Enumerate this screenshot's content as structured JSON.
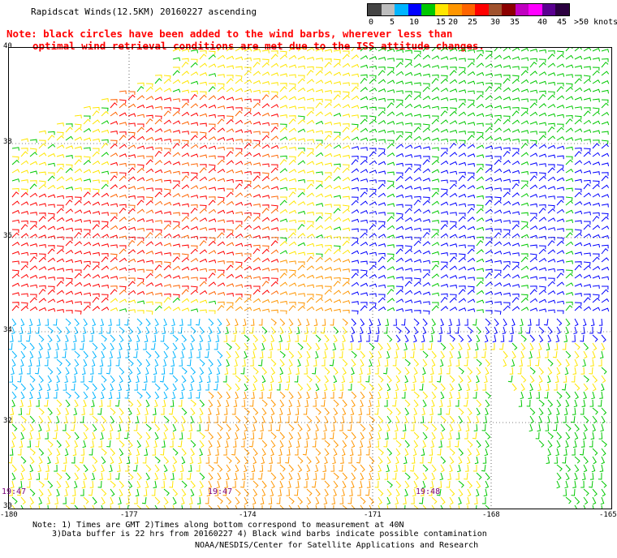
{
  "header": {
    "title": "Rapidscat Winds(12.5KM) 20160227 ascending",
    "note_line1": "Note: black circles have been added to the wind barbs, wherever less than",
    "note_line2": "optimal wind retrieval conditions are met due to the ISS attitude changes."
  },
  "legend": {
    "labels": [
      "0",
      "5",
      "10",
      "15",
      "20",
      "25",
      "30",
      "35",
      "40",
      "45",
      ">50 knots"
    ],
    "colors": [
      "#444444",
      "#bdbdbd",
      "#00b4ff",
      "#0000ff",
      "#00c800",
      "#ffe600",
      "#ff9600",
      "#ff6400",
      "#ff0000",
      "#a0522d",
      "#8b0000",
      "#c000c0",
      "#ff00ff",
      "#5a0090",
      "#2b0040"
    ]
  },
  "map": {
    "lat_labels": [
      "40",
      "38",
      "36",
      "34",
      "32",
      "30"
    ],
    "lon_labels": [
      "-180",
      "-177",
      "-174",
      "-171",
      "-168",
      "-165"
    ],
    "time_labels": [
      "19:47",
      "19:47",
      "19:48"
    ]
  },
  "footer": {
    "line1": "Note: 1) Times are GMT 2)Times along bottom correspond to measurement at 40N",
    "line2": "3)Data buffer is 22 hrs from 20160227 4) Black wind barbs indicate possible contamination",
    "credit": "NOAA/NESDIS/Center for Satellite Applications and Research"
  }
}
